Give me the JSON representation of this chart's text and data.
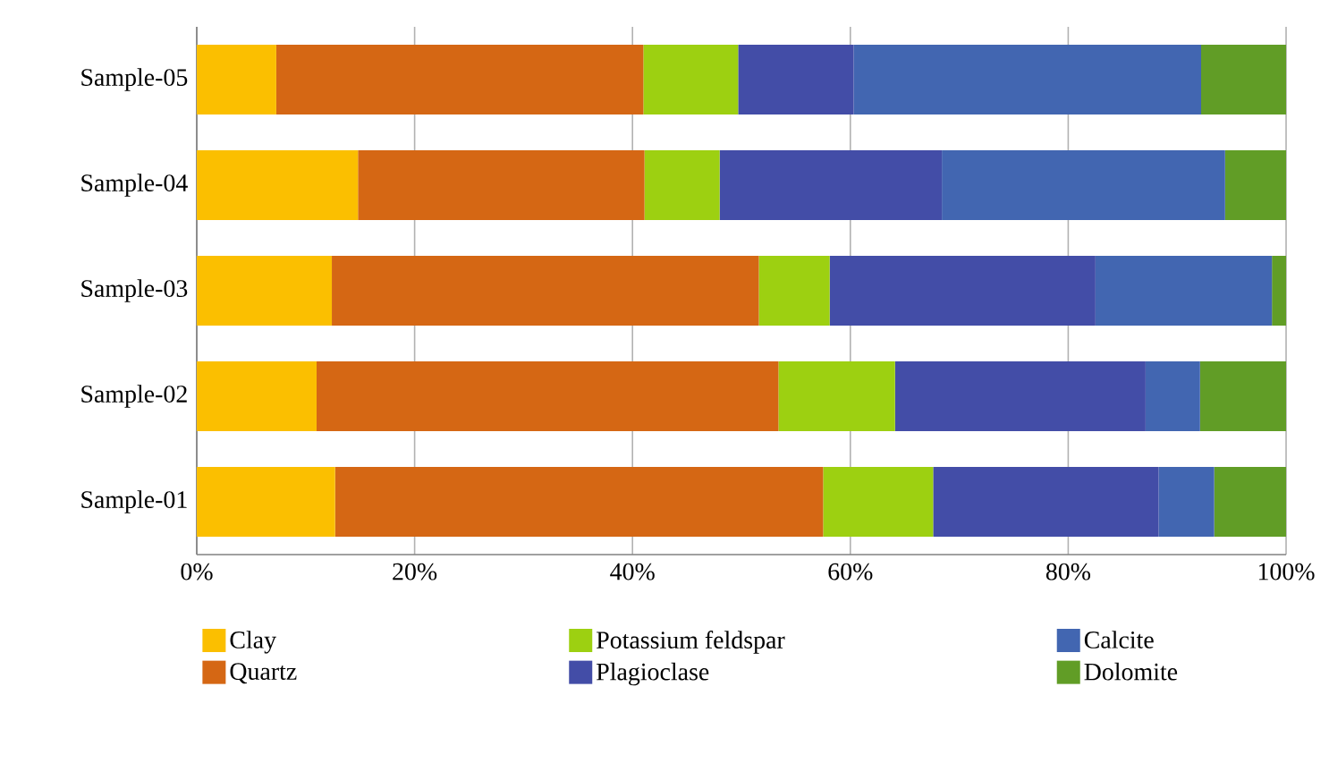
{
  "chart_data": {
    "type": "bar",
    "orientation": "horizontal",
    "stacked": true,
    "grid": "x",
    "legend": "bottom",
    "categories": [
      "Sample-05",
      "Sample-04",
      "Sample-03",
      "Sample-02",
      "Sample-01"
    ],
    "xlim": [
      0,
      100
    ],
    "xticks": [
      {
        "value": 0,
        "label": "0%"
      },
      {
        "value": 20,
        "label": "20%"
      },
      {
        "value": 40,
        "label": "40%"
      },
      {
        "value": 60,
        "label": "60%"
      },
      {
        "value": 80,
        "label": "80%"
      },
      {
        "value": 100,
        "label": "100%"
      }
    ],
    "series": [
      {
        "name": "Clay",
        "color": "#fbbf00",
        "values": [
          7.3,
          14.8,
          12.4,
          11.0,
          12.7
        ]
      },
      {
        "name": "Quartz",
        "color": "#d56714",
        "values": [
          33.7,
          26.3,
          39.2,
          42.4,
          44.8
        ]
      },
      {
        "name": "Potassium feldspar",
        "color": "#9dd011",
        "values": [
          8.7,
          6.9,
          6.5,
          10.7,
          10.1
        ]
      },
      {
        "name": "Plagioclase",
        "color": "#434da7",
        "values": [
          10.6,
          20.4,
          24.4,
          23.0,
          20.7
        ]
      },
      {
        "name": "Calcite",
        "color": "#4266b1",
        "values": [
          31.9,
          26.0,
          16.2,
          5.0,
          5.1
        ]
      },
      {
        "name": "Dolomite",
        "color": "#619d26",
        "values": [
          7.8,
          5.6,
          1.3,
          7.9,
          6.6
        ]
      }
    ]
  }
}
